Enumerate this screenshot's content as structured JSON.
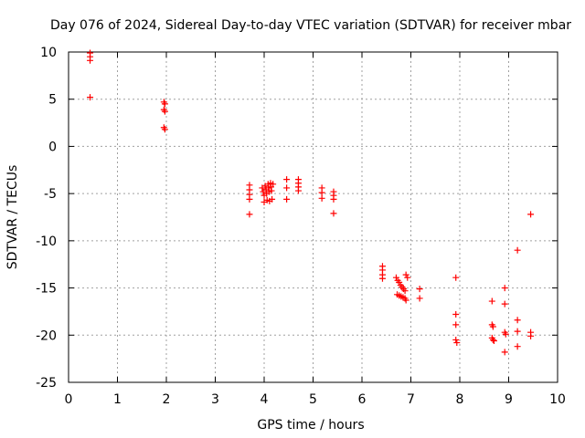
{
  "chart_data": {
    "type": "scatter",
    "title": "Day 076 of 2024, Sidereal Day-to-day VTEC variation (SDTVAR) for receiver mbar",
    "xlabel": "GPS time / hours",
    "ylabel": "SDTVAR / TECUs",
    "xlim": [
      0,
      10
    ],
    "ylim": [
      -25,
      10
    ],
    "xticks": [
      "0",
      "1",
      "2",
      "3",
      "4",
      "5",
      "6",
      "7",
      "8",
      "9",
      "10"
    ],
    "yticks": [
      "10",
      "5",
      "0",
      "-5",
      "-10",
      "-15",
      "-20",
      "-25"
    ],
    "grid": true,
    "marker": "+",
    "marker_color": "#ff0000",
    "series": [
      {
        "name": "SDTVAR",
        "points": [
          [
            0.44,
            9.9
          ],
          [
            0.44,
            9.5
          ],
          [
            0.44,
            9.1
          ],
          [
            0.44,
            5.2
          ],
          [
            1.95,
            4.7
          ],
          [
            1.97,
            4.5
          ],
          [
            1.95,
            3.9
          ],
          [
            1.97,
            3.7
          ],
          [
            1.95,
            2.0
          ],
          [
            1.97,
            1.8
          ],
          [
            3.7,
            -4.1
          ],
          [
            3.7,
            -4.6
          ],
          [
            3.7,
            -5.1
          ],
          [
            3.7,
            -5.6
          ],
          [
            3.7,
            -7.2
          ],
          [
            3.96,
            -4.4
          ],
          [
            3.98,
            -4.8
          ],
          [
            4.0,
            -5.2
          ],
          [
            4.0,
            -5.9
          ],
          [
            4.02,
            -4.2
          ],
          [
            4.04,
            -4.6
          ],
          [
            4.05,
            -5.0
          ],
          [
            4.06,
            -5.7
          ],
          [
            4.08,
            -4.0
          ],
          [
            4.09,
            -4.4
          ],
          [
            4.1,
            -4.8
          ],
          [
            4.11,
            -5.8
          ],
          [
            4.13,
            -3.9
          ],
          [
            4.14,
            -4.3
          ],
          [
            4.15,
            -4.7
          ],
          [
            4.16,
            -5.6
          ],
          [
            4.18,
            -4.0
          ],
          [
            4.46,
            -3.5
          ],
          [
            4.46,
            -4.4
          ],
          [
            4.46,
            -5.6
          ],
          [
            4.7,
            -3.5
          ],
          [
            4.7,
            -3.9
          ],
          [
            4.7,
            -4.3
          ],
          [
            4.7,
            -4.7
          ],
          [
            5.18,
            -4.4
          ],
          [
            5.18,
            -4.9
          ],
          [
            5.18,
            -5.5
          ],
          [
            5.42,
            -4.8
          ],
          [
            5.42,
            -5.2
          ],
          [
            5.42,
            -5.6
          ],
          [
            5.42,
            -7.1
          ],
          [
            6.42,
            -12.7
          ],
          [
            6.42,
            -13.1
          ],
          [
            6.42,
            -13.6
          ],
          [
            6.42,
            -14.0
          ],
          [
            6.7,
            -13.9
          ],
          [
            6.73,
            -14.2
          ],
          [
            6.76,
            -14.4
          ],
          [
            6.79,
            -14.7
          ],
          [
            6.82,
            -14.9
          ],
          [
            6.85,
            -15.1
          ],
          [
            6.88,
            -15.3
          ],
          [
            6.72,
            -15.7
          ],
          [
            6.76,
            -15.8
          ],
          [
            6.8,
            -15.9
          ],
          [
            6.84,
            -16.0
          ],
          [
            6.88,
            -16.1
          ],
          [
            6.9,
            -16.3
          ],
          [
            6.9,
            -13.6
          ],
          [
            6.93,
            -13.9
          ],
          [
            7.18,
            -15.1
          ],
          [
            7.18,
            -16.1
          ],
          [
            7.92,
            -13.9
          ],
          [
            7.92,
            -17.8
          ],
          [
            7.92,
            -18.9
          ],
          [
            7.92,
            -20.5
          ],
          [
            7.94,
            -20.8
          ],
          [
            8.66,
            -16.4
          ],
          [
            8.66,
            -18.9
          ],
          [
            8.68,
            -19.1
          ],
          [
            8.66,
            -20.3
          ],
          [
            8.68,
            -20.5
          ],
          [
            8.7,
            -20.6
          ],
          [
            8.92,
            -15.0
          ],
          [
            8.92,
            -16.7
          ],
          [
            8.92,
            -19.7
          ],
          [
            8.94,
            -19.9
          ],
          [
            8.92,
            -21.8
          ],
          [
            9.18,
            -11.0
          ],
          [
            9.18,
            -18.4
          ],
          [
            9.18,
            -19.6
          ],
          [
            9.18,
            -21.2
          ],
          [
            9.45,
            -7.2
          ],
          [
            9.45,
            -19.7
          ],
          [
            9.45,
            -20.1
          ]
        ]
      }
    ]
  }
}
